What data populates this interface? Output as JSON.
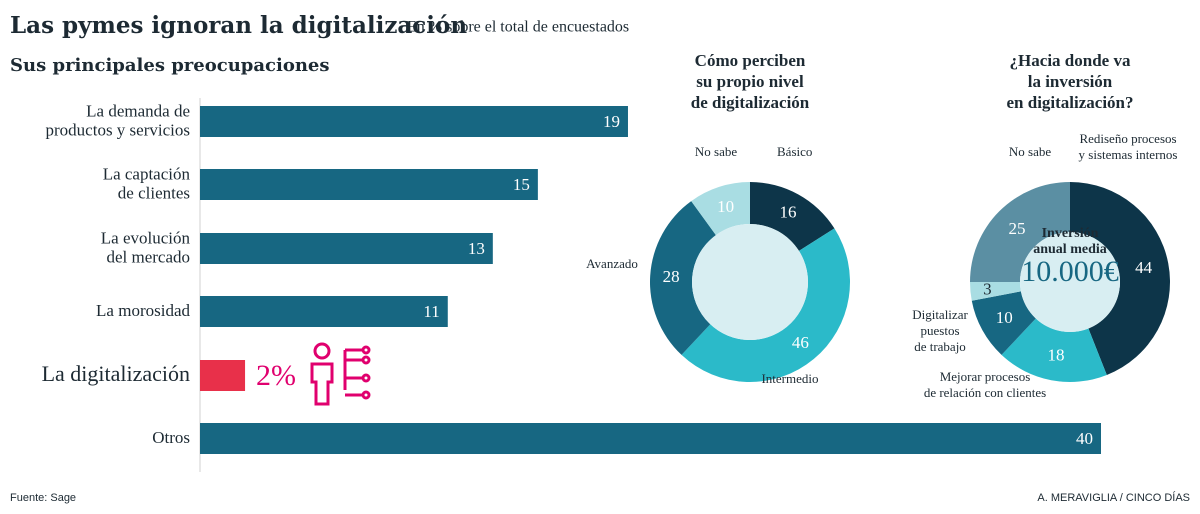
{
  "header": {
    "title": "Las pymes ignoran la digitalización",
    "subtitle": "En % sobre el total de encuestados"
  },
  "chart_data": [
    {
      "type": "bar",
      "title": "Sus principales preocupaciones",
      "categories": [
        "La demanda de\nproductos y servicios",
        "La captación\nde clientes",
        "La evolución\ndel mercado",
        "La morosidad",
        "La digitalización",
        "Otros"
      ],
      "values": [
        19,
        15,
        13,
        11,
        2,
        40
      ],
      "value_labels": [
        "19",
        "15",
        "13",
        "11",
        "2%",
        "40"
      ],
      "colors": [
        "#176782",
        "#176782",
        "#176782",
        "#176782",
        "#e8304a",
        "#176782"
      ],
      "xlim": [
        0,
        40
      ]
    },
    {
      "type": "donut",
      "title": "Cómo perciben\nsu propio nivel\nde digitalización",
      "categories": [
        "Básico",
        "Intermedio",
        "Avanzado",
        "No sabe"
      ],
      "values": [
        16,
        46,
        28,
        10
      ],
      "colors": [
        "#0d3549",
        "#2bbac9",
        "#176782",
        "#a9dde3"
      ]
    },
    {
      "type": "donut",
      "title": "¿Hacia donde va\nla inversión\nen digitalización?",
      "categories": [
        "Rediseño procesos\ny sistemas internos",
        "Mejorar procesos\nde relación con clientes",
        "Digitalizar\npuestos\nde trabajo",
        null,
        "No sabe"
      ],
      "values": [
        44,
        18,
        10,
        3,
        25
      ],
      "colors": [
        "#0d3549",
        "#2bbac9",
        "#176782",
        "#a9dde3",
        "#5b8fa3"
      ],
      "annotations": [
        "Inversión\nanual media",
        "10.000€"
      ]
    }
  ],
  "footer": {
    "source": "Fuente: Sage",
    "credit": "A. MERAVIGLIA / CINCO DÍAS"
  }
}
